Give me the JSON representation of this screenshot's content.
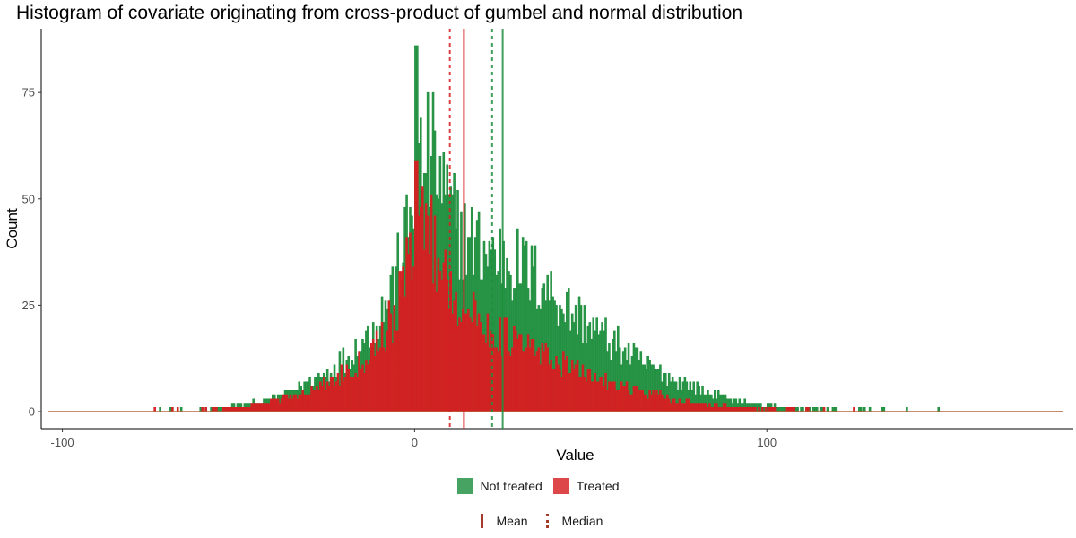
{
  "chart_data": {
    "type": "bar",
    "title": "Histogram of covariate originating from cross-product of gumbel and normal distribution",
    "xlabel": "Value",
    "ylabel": "Count",
    "xlim": [
      -106,
      187
    ],
    "ylim": [
      -4,
      90
    ],
    "x_ticks": [
      -100,
      0,
      100
    ],
    "x_tick_labels": [
      "-100",
      "0",
      "100"
    ],
    "y_ticks": [
      0,
      25,
      50,
      75
    ],
    "y_tick_labels": [
      "0",
      "25",
      "50",
      "75"
    ],
    "grid": false,
    "bin_width": 0.5,
    "legend_position": "bottom",
    "series": [
      {
        "name": "Not treated",
        "color": "#1f8f3e",
        "mean": 25,
        "median": 22,
        "profile": {
          "x": [
            -104,
            -80,
            -60,
            -50,
            -40,
            -35,
            -30,
            -25,
            -20,
            -15,
            -10,
            -5,
            -2,
            0,
            2,
            4,
            6,
            8,
            10,
            12,
            15,
            20,
            25,
            30,
            35,
            40,
            45,
            50,
            55,
            60,
            65,
            70,
            75,
            80,
            85,
            90,
            95,
            100,
            110,
            120,
            130,
            140,
            150,
            160,
            170,
            180,
            184
          ],
          "counts": [
            0,
            0,
            0.5,
            1.5,
            3,
            5,
            7,
            9,
            12,
            16,
            22,
            32,
            42,
            52,
            58,
            60,
            58,
            52,
            47,
            44,
            40,
            38,
            36,
            34,
            31,
            27,
            23,
            20,
            17,
            14,
            11,
            9,
            7,
            5.5,
            4,
            3,
            2,
            1.5,
            0.8,
            0.4,
            0.2,
            0.1,
            0.04,
            0,
            0,
            0,
            0
          ]
        },
        "peak": {
          "x": 0.5,
          "count": 86
        }
      },
      {
        "name": "Treated",
        "color": "#d61f22",
        "mean": 14,
        "median": 10,
        "profile": {
          "x": [
            -104,
            -80,
            -60,
            -50,
            -40,
            -35,
            -30,
            -25,
            -20,
            -15,
            -10,
            -5,
            -2,
            0,
            2,
            4,
            6,
            8,
            10,
            12,
            15,
            20,
            25,
            30,
            35,
            40,
            45,
            50,
            55,
            60,
            65,
            70,
            75,
            80,
            85,
            90,
            95,
            100,
            110,
            120,
            130,
            140,
            150,
            160,
            170,
            180,
            184
          ],
          "counts": [
            0,
            0,
            0.3,
            1,
            2.5,
            3.5,
            5,
            6.5,
            9,
            12,
            17,
            24,
            33,
            42,
            45,
            43,
            38,
            34,
            30,
            27,
            23,
            20,
            18,
            16,
            14,
            12,
            10,
            8.5,
            7,
            5.5,
            4.5,
            3.5,
            2.5,
            2,
            1.5,
            1.2,
            0.8,
            0.6,
            0.3,
            0.2,
            0.1,
            0.05,
            0,
            0,
            0,
            0,
            0
          ]
        },
        "peak": {
          "x": 0.5,
          "count": 59
        }
      }
    ],
    "reference_lines": [
      {
        "label": "Mean",
        "style": "solid"
      },
      {
        "label": "Median",
        "style": "dashed"
      }
    ],
    "reference_line_legend_color": "#a33a2a"
  }
}
